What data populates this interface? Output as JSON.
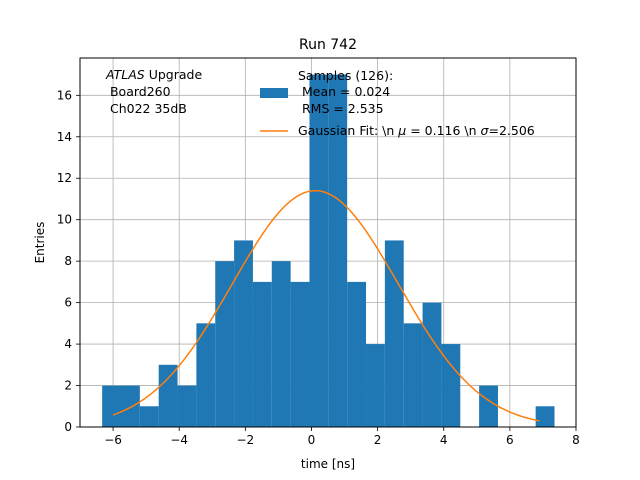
{
  "chart_data": {
    "type": "bar",
    "title": "Run 742",
    "xlabel": "time [ns]",
    "ylabel": "Entries",
    "xlim": [
      -7,
      8
    ],
    "ylim": [
      0,
      17.8
    ],
    "grid": true,
    "legend_position": "top-center",
    "x_ticks": [
      -6,
      -4,
      -2,
      0,
      2,
      4,
      6,
      8
    ],
    "y_ticks": [
      0,
      2,
      4,
      6,
      8,
      10,
      12,
      14,
      16
    ],
    "x_tick_labels": [
      "−6",
      "−4",
      "−2",
      "0",
      "2",
      "4",
      "6",
      "8"
    ],
    "y_tick_labels": [
      "0",
      "2",
      "4",
      "6",
      "8",
      "10",
      "12",
      "14",
      "16"
    ],
    "bin_width": 0.57,
    "bin_starts": [
      -6.33,
      -5.76,
      -5.19,
      -4.62,
      -4.05,
      -3.48,
      -2.91,
      -2.34,
      -1.77,
      -1.2,
      -0.63,
      -0.06,
      0.51,
      1.08,
      1.65,
      2.22,
      2.79,
      3.36,
      3.93,
      4.5,
      5.07,
      5.64,
      6.21,
      6.78
    ],
    "values": [
      2,
      2,
      1,
      3,
      2,
      5,
      8,
      9,
      7,
      8,
      7,
      17,
      17,
      7,
      4,
      9,
      5,
      6,
      4,
      0,
      2,
      0,
      0,
      1
    ],
    "bar_color": "#1f77b4",
    "fit": {
      "amplitude": 11.4,
      "mean": 0.116,
      "sigma": 2.506,
      "x_range": [
        -6.0,
        6.9
      ],
      "color": "#ff7f0e"
    },
    "annotation": {
      "line1_italic": "ATLAS",
      "line1_rest": " Upgrade",
      "line2": " Board260",
      "line3": " Ch022 35dB"
    },
    "legend": {
      "samples_line1": "Samples (126):",
      "samples_line2": " Mean = 0.024",
      "samples_line3": " RMS = 2.535",
      "fit_prefix": "Gaussian Fit: \\n ",
      "fit_mu_symbol": "μ",
      "fit_middle": " = 0.116 \\n ",
      "fit_sigma_symbol": "σ",
      "fit_suffix": "=2.506"
    }
  }
}
